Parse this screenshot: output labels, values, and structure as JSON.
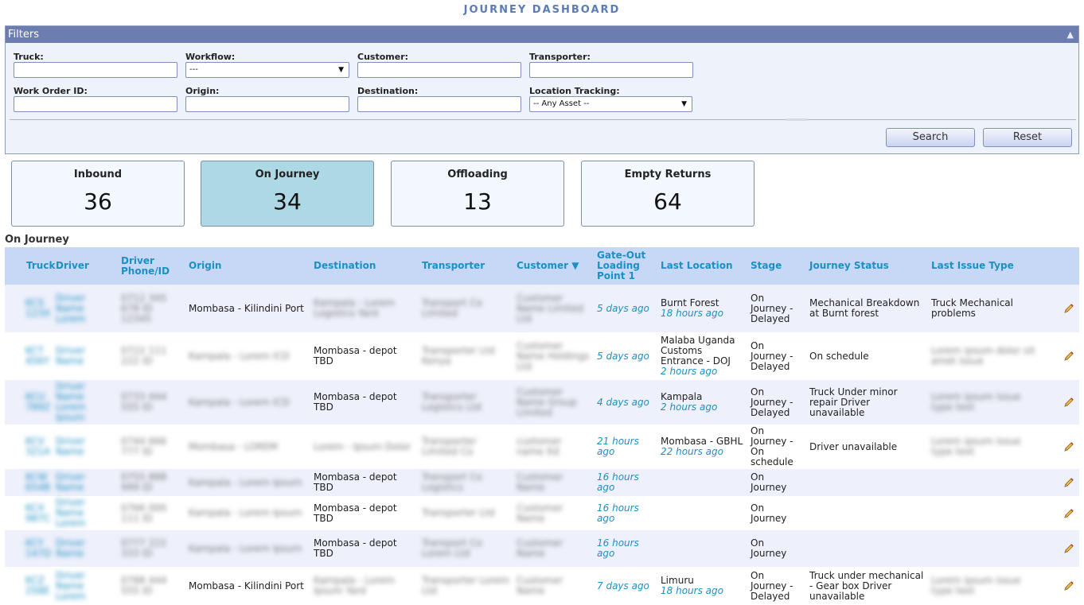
{
  "page": {
    "title": "JOURNEY DASHBOARD"
  },
  "filters": {
    "header": "Filters",
    "truck_label": "Truck:",
    "workflow_label": "Workflow:",
    "workflow_value": "---",
    "customer_label": "Customer:",
    "transporter_label": "Transporter:",
    "work_order_label": "Work Order ID:",
    "origin_label": "Origin:",
    "destination_label": "Destination:",
    "location_tracking_label": "Location Tracking:",
    "location_tracking_value": "-- Any Asset --",
    "search_label": "Search",
    "reset_label": "Reset"
  },
  "cards": [
    {
      "title": "Inbound",
      "count": "36"
    },
    {
      "title": "On Journey",
      "count": "34"
    },
    {
      "title": "Offloading",
      "count": "13"
    },
    {
      "title": "Empty Returns",
      "count": "64"
    }
  ],
  "section_title": "On Journey",
  "table": {
    "headers": {
      "truck": "Truck",
      "driver": "Driver",
      "driver_phone": "Driver Phone/ID",
      "origin": "Origin",
      "destination": "Destination",
      "transporter": "Transporter",
      "customer": "Customer ▼",
      "gate_out": "Gate-Out Loading Point 1",
      "last_location": "Last Location",
      "stage": "Stage",
      "journey_status": "Journey Status",
      "last_issue_type": "Last Issue Type"
    },
    "rows": [
      {
        "truck": "KCS 123X",
        "driver": "Driver Name Lorem",
        "phone": "0712 345 678 ID 12345",
        "origin": "Mombasa - Kilindini Port",
        "destination": "Kampala - Lorem Logistics Yard",
        "transporter": "Transport Co Limited",
        "customer": "Customer Name Limited Ltd",
        "gate_out": "5 days ago",
        "last_location": "Burnt Forest",
        "last_location_ago": "18 hours ago",
        "stage": "On Journey - Delayed",
        "status": "Mechanical Breakdown at Burnt forest",
        "issue": "Truck Mechanical problems"
      },
      {
        "truck": "KCT 456Y",
        "driver": "Driver Name",
        "phone": "0722 111 222 ID",
        "origin": "Kampala - Lorem ICD",
        "destination": "Mombasa - depot TBD",
        "transporter": "Transporter Ltd Kenya",
        "customer": "Customer Name Holdings Ltd",
        "gate_out": "5 days ago",
        "last_location": "Malaba Uganda Customs Entrance - DOJ",
        "last_location_ago": "2 hours ago",
        "stage": "On Journey - Delayed",
        "status": "On schedule",
        "issue": "Lorem ipsum dolor sit amet issue"
      },
      {
        "truck": "KCU 789Z",
        "driver": "Driver Name Lorem Ipsum",
        "phone": "0733 444 555 ID",
        "origin": "Kampala - Lorem ICD",
        "destination": "Mombasa - depot TBD",
        "transporter": "Transporter Logistics Ltd",
        "customer": "Customer Name Group Limited",
        "gate_out": "4 days ago",
        "last_location": "Kampala",
        "last_location_ago": "2 hours ago",
        "stage": "On Journey - Delayed",
        "status": "Truck Under minor repair Driver unavailable",
        "issue": "Lorem ipsum issue type text"
      },
      {
        "truck": "KCV 321A",
        "driver": "Driver Name",
        "phone": "0744 666 777 ID",
        "origin": "Mombasa - LOREM",
        "destination": "Lorem - Ipsum Dolor",
        "transporter": "Transporter Limited Co",
        "customer": "customer name ltd",
        "gate_out": "21 hours ago",
        "last_location": "Mombasa - GBHL",
        "last_location_ago": "22 hours ago",
        "stage": "On Journey - On schedule",
        "status": "Driver unavailable",
        "issue": "Lorem ipsum issue type text"
      },
      {
        "truck": "KCW 654B",
        "driver": "Driver Name",
        "phone": "0755 888 999 ID",
        "origin": "Kampala - Lorem Ipsum",
        "destination": "Mombasa - depot TBD",
        "transporter": "Transport Co Logistics",
        "customer": "Customer Name",
        "gate_out": "16 hours ago",
        "last_location": "",
        "last_location_ago": "",
        "stage": "On Journey",
        "status": "",
        "issue": ""
      },
      {
        "truck": "KCX 987C",
        "driver": "Driver Name Lorem",
        "phone": "0766 000 111 ID",
        "origin": "Kampala - Lorem Ipsum",
        "destination": "Mombasa - depot TBD",
        "transporter": "Transporter Ltd",
        "customer": "Customer Name",
        "gate_out": "16 hours ago",
        "last_location": "",
        "last_location_ago": "",
        "stage": "On Journey",
        "status": "",
        "issue": ""
      },
      {
        "truck": "KCY 147D",
        "driver": "Driver Name",
        "phone": "0777 222 333 ID",
        "origin": "Kampala - Lorem Ipsum",
        "destination": "Mombasa - depot TBD",
        "transporter": "Transport Co Lorem Ltd",
        "customer": "Customer Name",
        "gate_out": "16 hours ago",
        "last_location": "",
        "last_location_ago": "",
        "stage": "On Journey",
        "status": "",
        "issue": ""
      },
      {
        "truck": "KCZ 258E",
        "driver": "Driver Name Lorem",
        "phone": "0788 444 555 ID",
        "origin": "Mombasa - Kilindini Port",
        "destination": "Kampala - Lorem Ipsum Yard",
        "transporter": "Transporter Lorem Ltd",
        "customer": "Customer Name",
        "gate_out": "7 days ago",
        "last_location": "Limuru",
        "last_location_ago": "18 hours ago",
        "stage": "On Journey - Delayed",
        "status": "Truck under mechanical - Gear box Driver unavailable",
        "issue": "Lorem ipsum issue type text"
      }
    ]
  },
  "icons": {
    "collapse": "collapse-up-icon",
    "edit": "pencil-icon"
  }
}
